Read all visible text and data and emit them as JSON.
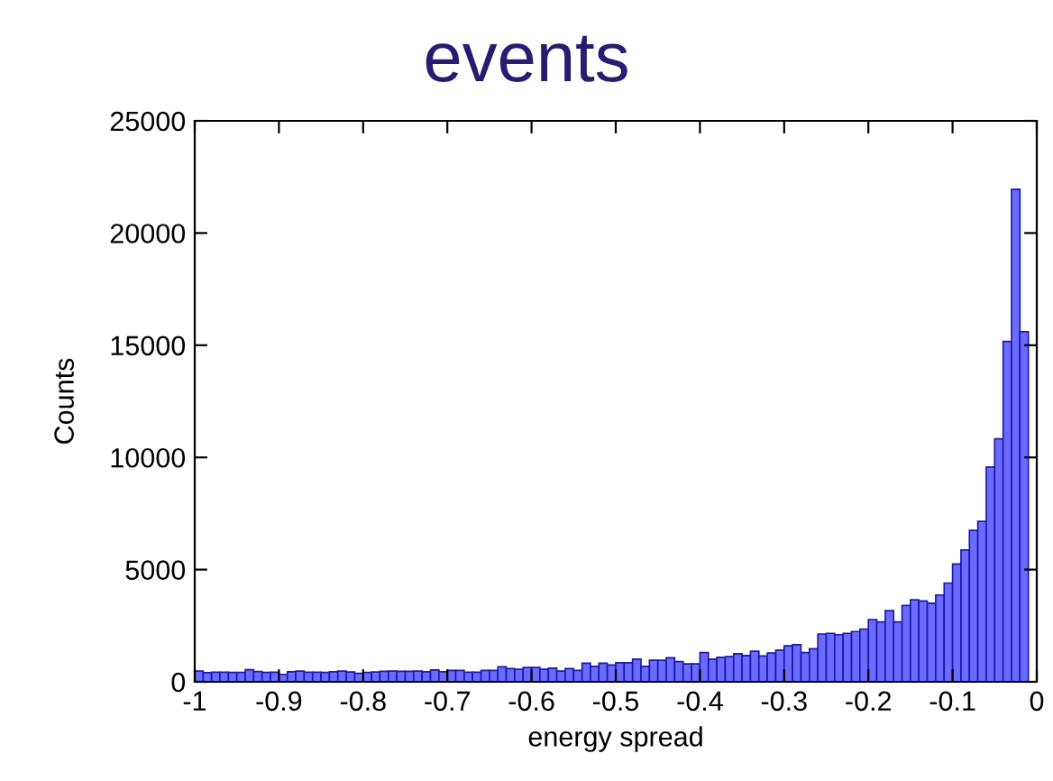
{
  "chart_data": {
    "type": "histogram",
    "title": "events",
    "xlabel": "energy spread",
    "ylabel": "Counts",
    "bins": [
      -1.0,
      -0.99,
      -0.98,
      -0.97,
      -0.96,
      -0.95,
      -0.94,
      -0.93,
      -0.92,
      -0.91,
      -0.9,
      -0.89,
      -0.88,
      -0.87,
      -0.86,
      -0.85,
      -0.84,
      -0.83,
      -0.82,
      -0.81,
      -0.8,
      -0.79,
      -0.78,
      -0.77,
      -0.76,
      -0.75,
      -0.74,
      -0.73,
      -0.72,
      -0.71,
      -0.7,
      -0.69,
      -0.68,
      -0.67,
      -0.66,
      -0.65,
      -0.64,
      -0.63,
      -0.62,
      -0.61,
      -0.6,
      -0.59,
      -0.58,
      -0.57,
      -0.56,
      -0.55,
      -0.54,
      -0.53,
      -0.52,
      -0.51,
      -0.5,
      -0.49,
      -0.48,
      -0.47,
      -0.46,
      -0.45,
      -0.44,
      -0.43,
      -0.42,
      -0.41,
      -0.4,
      -0.39,
      -0.38,
      -0.37,
      -0.36,
      -0.35,
      -0.34,
      -0.33,
      -0.32,
      -0.31,
      -0.3,
      -0.29,
      -0.28,
      -0.27,
      -0.26,
      -0.25,
      -0.24,
      -0.23,
      -0.22,
      -0.21,
      -0.2,
      -0.19,
      -0.18,
      -0.17,
      -0.16,
      -0.15,
      -0.14,
      -0.13,
      -0.12,
      -0.11,
      -0.1,
      -0.09,
      -0.08,
      -0.07,
      -0.06,
      -0.05,
      -0.04,
      -0.03,
      -0.02,
      -0.01
    ],
    "values": [
      480,
      410,
      430,
      430,
      420,
      420,
      540,
      460,
      420,
      430,
      330,
      450,
      480,
      430,
      430,
      420,
      450,
      480,
      440,
      380,
      420,
      440,
      470,
      480,
      470,
      470,
      480,
      450,
      530,
      450,
      510,
      510,
      430,
      430,
      510,
      510,
      670,
      590,
      560,
      640,
      640,
      560,
      610,
      480,
      590,
      510,
      830,
      690,
      830,
      750,
      850,
      850,
      1010,
      690,
      960,
      960,
      1070,
      900,
      800,
      800,
      1300,
      1010,
      1090,
      1120,
      1250,
      1170,
      1360,
      1150,
      1280,
      1410,
      1600,
      1650,
      1300,
      1470,
      2130,
      2160,
      2100,
      2160,
      2240,
      2350,
      2770,
      2670,
      3170,
      2670,
      3400,
      3650,
      3600,
      3500,
      3870,
      4400,
      5250,
      5870,
      6750,
      7150,
      9570,
      10830,
      15170,
      21950,
      15600
    ],
    "color": "#6b6bff",
    "xlim": [
      -1,
      0
    ],
    "xticks": [
      -1,
      -0.9,
      -0.8,
      -0.7,
      -0.6,
      -0.5,
      -0.4,
      -0.3,
      -0.2,
      -0.1,
      0
    ],
    "ylim": [
      0,
      25000
    ],
    "yticks": [
      0,
      5000,
      10000,
      15000,
      20000,
      25000
    ],
    "grid": false
  }
}
